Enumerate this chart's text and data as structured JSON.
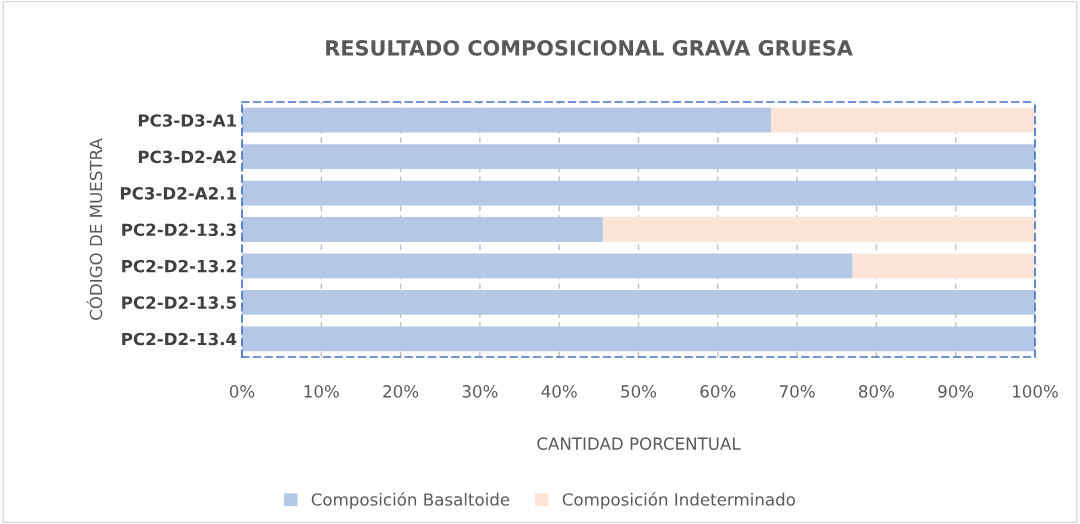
{
  "chart_data": {
    "type": "bar",
    "orientation": "horizontal",
    "stacked": true,
    "title": "RESULTADO COMPOSICIONAL GRAVA GRUESA",
    "xlabel": "CANTIDAD PORCENTUAL",
    "ylabel": "CÓDIGO DE MUESTRA",
    "categories": [
      "PC3-D3-A1",
      "PC3-D2-A2",
      "PC3-D2-A2.1",
      "PC2-D2-13.3",
      "PC2-D2-13.2",
      "PC2-D2-13.5",
      "PC2-D2-13.4"
    ],
    "series": [
      {
        "name": "Composición Basaltoide",
        "color": "#b4c7e7",
        "values": [
          66.7,
          100,
          100,
          45.5,
          77.0,
          100,
          100
        ]
      },
      {
        "name": "Composición Indeterminado",
        "color": "#fbe5d6",
        "values": [
          33.3,
          0,
          0,
          54.5,
          23.0,
          0,
          0
        ]
      }
    ],
    "xlim": [
      0,
      100
    ],
    "xticks": [
      {
        "value": 0,
        "label": "0%"
      },
      {
        "value": 10,
        "label": "10%"
      },
      {
        "value": 20,
        "label": "20%"
      },
      {
        "value": 30,
        "label": "30%"
      },
      {
        "value": 40,
        "label": "40%"
      },
      {
        "value": 50,
        "label": "50%"
      },
      {
        "value": 60,
        "label": "60%"
      },
      {
        "value": 70,
        "label": "70%"
      },
      {
        "value": 80,
        "label": "80%"
      },
      {
        "value": 90,
        "label": "90%"
      },
      {
        "value": 100,
        "label": "100%"
      }
    ],
    "grid": "x",
    "legend": "bottom"
  }
}
